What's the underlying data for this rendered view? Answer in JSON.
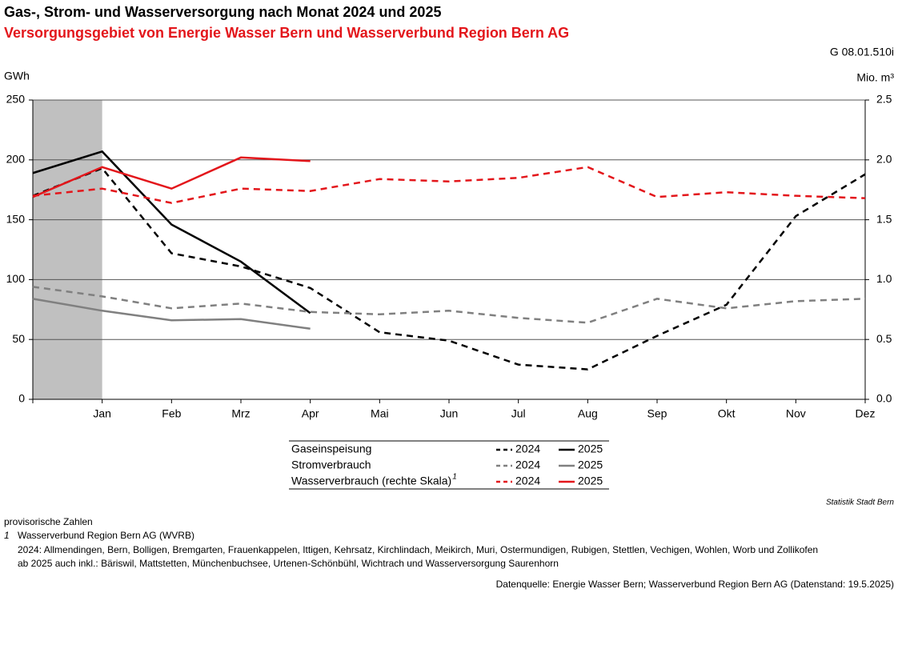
{
  "chart_data": {
    "type": "line",
    "title": "Gas-, Strom- und Wasserversorgung nach Monat 2024 und 2025",
    "subtitle": "Versorgungsgebiet von Energie Wasser Bern und Wasserverbund Region Bern AG",
    "code": "G 08.01.510i",
    "ylabel": "GWh",
    "y2label": "Mio. m³",
    "categories": [
      null,
      "Jan",
      "Feb",
      "Mrz",
      "Apr",
      "Mai",
      "Jun",
      "Jul",
      "Aug",
      "Sep",
      "Okt",
      "Nov",
      "Dez"
    ],
    "ylim": [
      0,
      250
    ],
    "yticks": [
      0,
      50,
      100,
      150,
      200,
      250
    ],
    "y2lim": [
      0,
      2.5
    ],
    "y2ticks": [
      {
        "value": 0,
        "label": "0.0"
      },
      0.5,
      {
        "value": 1,
        "label": "1.0"
      },
      1.5,
      {
        "value": 2,
        "label": "2.0"
      },
      2.5
    ],
    "grid": true,
    "legend_groups": [
      "Gaseinspeisung",
      "Stromverbrauch",
      "Wasserverbrauch (rechte Skala)"
    ],
    "legend_note": "1",
    "series": [
      {
        "name": "2024",
        "color": "#000000",
        "dash": true,
        "values": [
          170,
          193,
          122,
          111,
          93,
          56,
          49,
          29,
          25,
          53,
          79,
          153,
          188
        ]
      },
      {
        "name": "2025",
        "color": "#000000",
        "dash": false,
        "values": [
          189,
          207,
          146,
          115,
          72,
          null,
          null,
          null,
          null,
          null,
          null,
          null,
          null
        ]
      },
      {
        "name": "2024",
        "color": "#808080",
        "dash": true,
        "values": [
          94,
          86,
          76,
          80,
          73,
          71,
          74,
          68,
          64,
          84,
          76,
          82,
          84
        ]
      },
      {
        "name": "2025",
        "color": "#808080",
        "dash": false,
        "values": [
          84,
          74,
          66,
          67,
          59,
          null,
          null,
          null,
          null,
          null,
          null,
          null,
          null
        ]
      },
      {
        "name": "2024",
        "color": "#e3161b",
        "dash": true,
        "axis": "y2",
        "values": [
          1.7,
          1.76,
          1.64,
          1.76,
          1.74,
          1.84,
          1.82,
          1.85,
          1.94,
          1.69,
          1.73,
          1.7,
          1.68
        ]
      },
      {
        "name": "2025",
        "color": "#e3161b",
        "dash": false,
        "axis": "y2",
        "values": [
          1.69,
          1.94,
          1.76,
          2.02,
          1.99,
          null,
          null,
          null,
          null,
          null,
          null,
          null,
          null
        ]
      }
    ],
    "source": "Statistik Stadt Bern"
  },
  "footer": {
    "provisional": "provisorische Zahlen",
    "note_mark": "1",
    "note_lines": [
      "Wasserverbund Region Bern AG (WVRB)",
      "2024: Allmendingen, Bern, Bolligen, Bremgarten, Frauenkappelen, Ittigen, Kehrsatz, Kirchlindach, Meikirch, Muri, Ostermundigen, Rubigen, Stettlen, Vechigen, Wohlen, Worb und Zollikofen",
      "ab 2025 auch inkl.: Bäriswil, Mattstetten, Münchenbuchsee, Urtenen-Schönbühl, Wichtrach und Wasserversorgung Saurenhorn"
    ],
    "datasource": "Datenquelle: Energie Wasser Bern; Wasserverbund Region Bern AG (Datenstand: 19.5.2025)"
  }
}
